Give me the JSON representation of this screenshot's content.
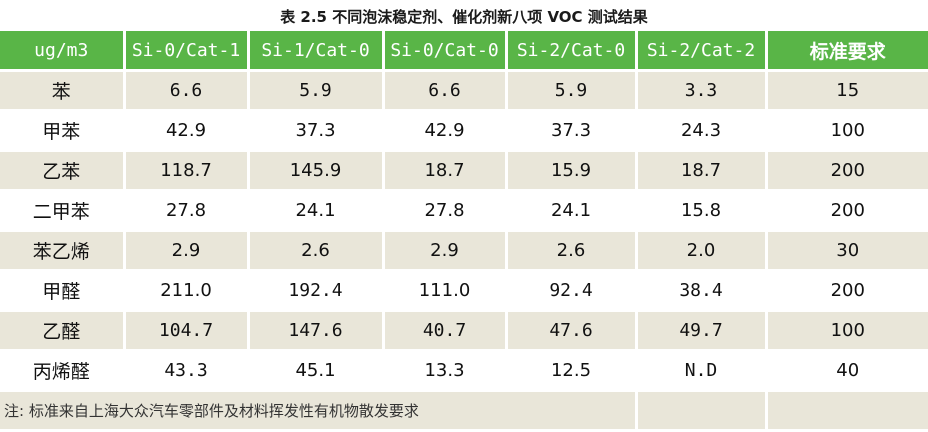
{
  "title": "表 2.5 不同泡沫稳定剂、催化剂新八项 VOC 测试结果",
  "colors": {
    "header_bg": "#59b547",
    "header_text": "#ffffff",
    "band_bg": "#e9e6d9",
    "plain_bg": "#ffffff"
  },
  "table": {
    "headers": [
      "ug/m3",
      "Si-0/Cat-1",
      "Si-1/Cat-0",
      "Si-0/Cat-0",
      "Si-2/Cat-0",
      "Si-2/Cat-2",
      "标准要求"
    ],
    "rows": [
      {
        "name": "苯",
        "values": [
          "6.6",
          "5.9",
          "6.6",
          "5.9",
          "3.3",
          "15"
        ]
      },
      {
        "name": "甲苯",
        "values": [
          "42.9",
          "37.3",
          "42.9",
          "37.3",
          "24.3",
          "100"
        ]
      },
      {
        "name": "乙苯",
        "values": [
          "118.7",
          "145.9",
          "18.7",
          "15.9",
          "18.7",
          "200"
        ]
      },
      {
        "name": "二甲苯",
        "values": [
          "27.8",
          "24.1",
          "27.8",
          "24.1",
          "15.8",
          "200"
        ]
      },
      {
        "name": "苯乙烯",
        "values": [
          "2.9",
          "2.6",
          "2.9",
          "2.6",
          "2.0",
          "30"
        ]
      },
      {
        "name": "甲醛",
        "values": [
          "211.0",
          "192.4",
          "111.0",
          "92.4",
          "38.4",
          "200"
        ]
      },
      {
        "name": "乙醛",
        "values": [
          "104.7",
          "147.6",
          "40.7",
          "47.6",
          "49.7",
          "100"
        ]
      },
      {
        "name": "丙烯醛",
        "values": [
          "43.3",
          "45.1",
          "13.3",
          "12.5",
          "N.D",
          "40"
        ]
      }
    ],
    "note": "注: 标准来自上海大众汽车零部件及材料挥发性有机物散发要求"
  }
}
